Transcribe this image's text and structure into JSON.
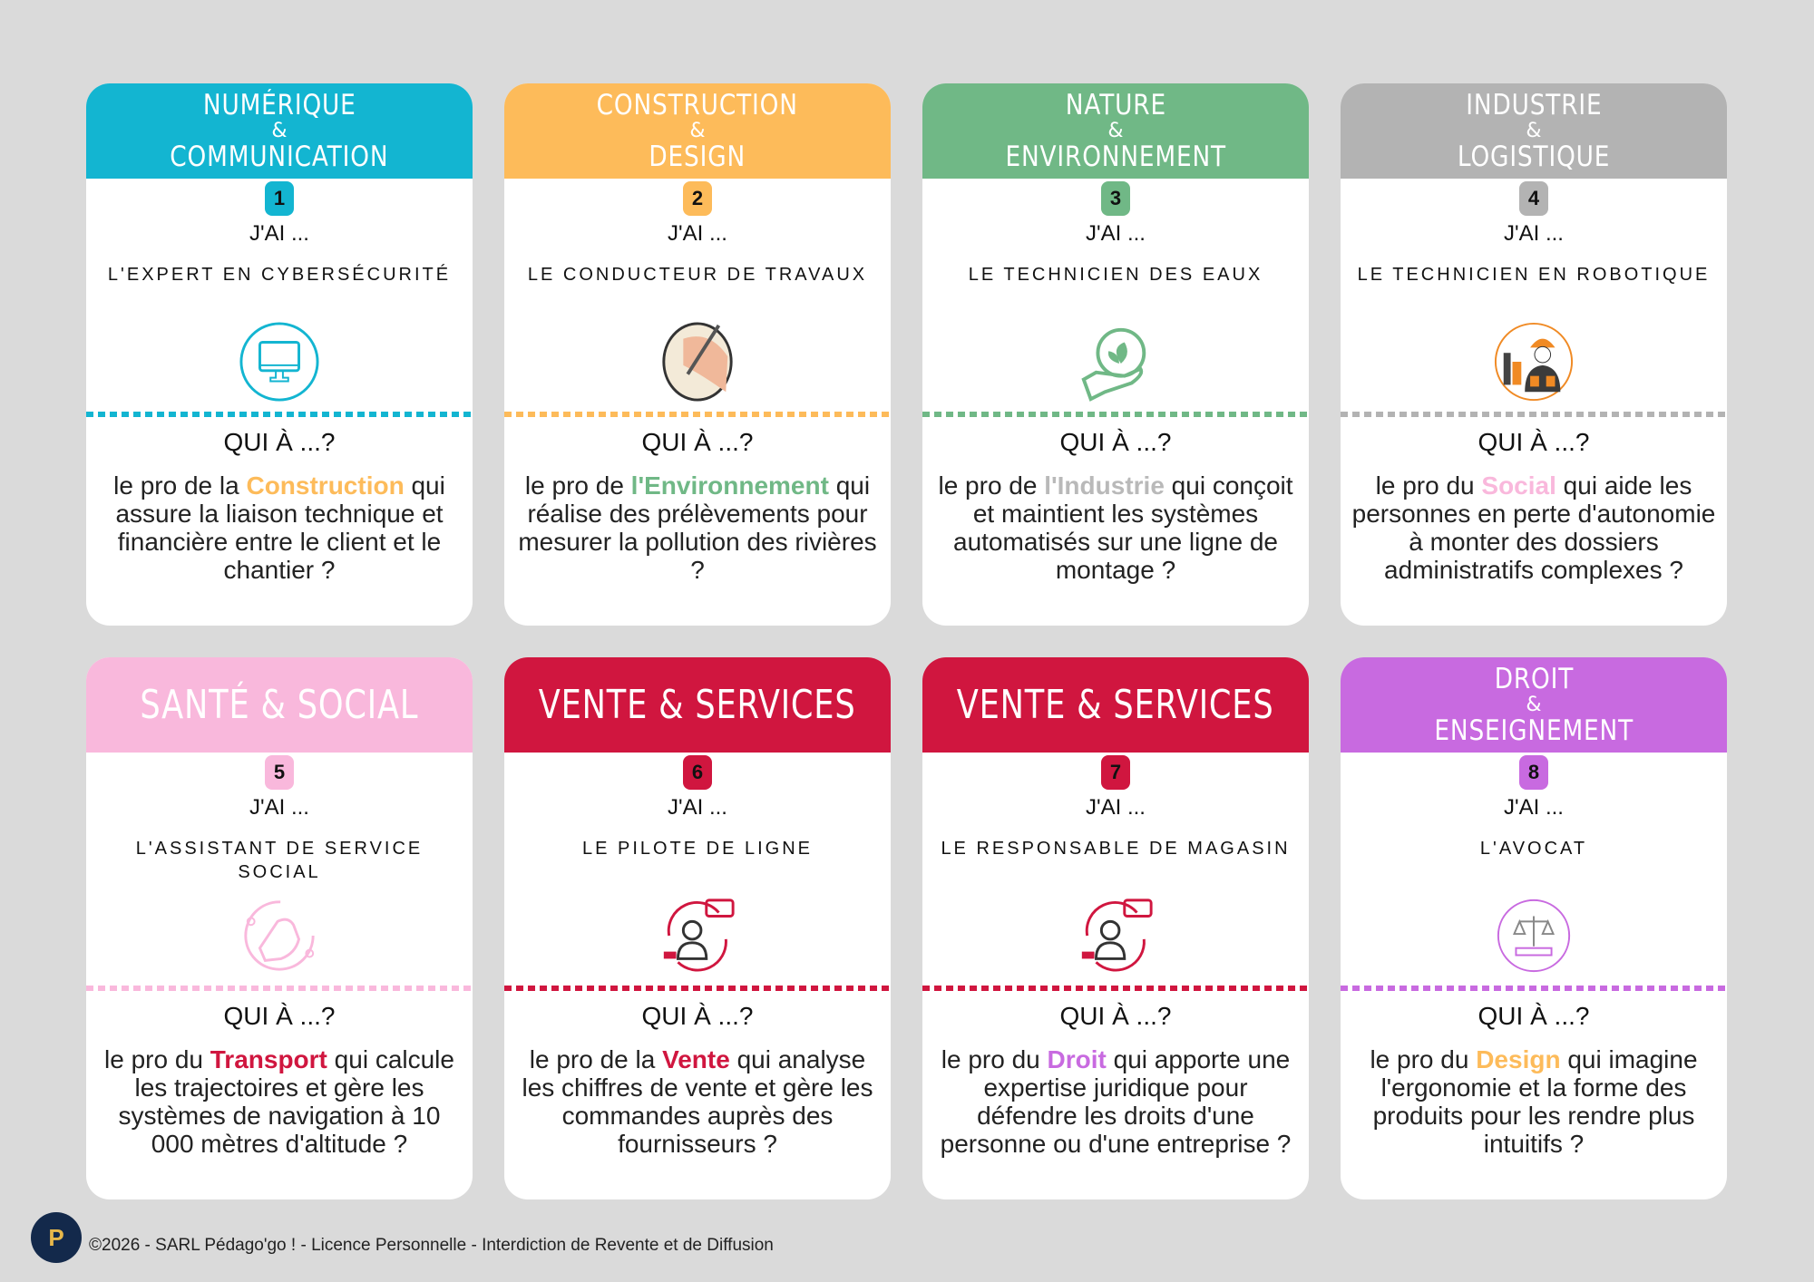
{
  "cards": [
    {
      "number": "1",
      "color": "#13b5d1",
      "title_lines": [
        "NUMÉRIQUE",
        "&",
        "COMMUNICATION"
      ],
      "jai": "J'AI ...",
      "job": "L'expert en cybersécurité",
      "icon": "computer-icon",
      "qui": "QUI À ...?",
      "desc_pre": "le pro de la ",
      "desc_hl": "Construction",
      "hl_color": "#fdbb5a",
      "desc_post": " qui assure la liaison technique et financière entre le client et le chantier ?"
    },
    {
      "number": "2",
      "color": "#fdbb5a",
      "title_lines": [
        "CONSTRUCTION",
        "&",
        "DESIGN"
      ],
      "jai": "J'AI ...",
      "job": "Le conducteur de travaux",
      "icon": "drawing-hand-icon",
      "qui": "QUI À ...?",
      "desc_pre": "le pro de ",
      "desc_hl": "l'Environnement",
      "hl_color": "#70b886",
      "desc_post": " qui réalise des prélèvements pour mesurer la pollution des rivières ?"
    },
    {
      "number": "3",
      "color": "#70b886",
      "title_lines": [
        "NATURE",
        "&",
        "ENVIRONNEMENT"
      ],
      "jai": "J'AI ...",
      "job": "Le technicien des eaux",
      "icon": "leaf-hand-icon",
      "qui": "QUI À ...?",
      "desc_pre": "le pro de ",
      "desc_hl": "l'Industrie",
      "hl_color": "#b9b9b9",
      "desc_post": " qui conçoit et maintient les systèmes automatisés sur une ligne de montage ?"
    },
    {
      "number": "4",
      "color": "#b3b3b3",
      "title_lines": [
        "INDUSTRIE",
        "&",
        "LOGISTIQUE"
      ],
      "jai": "J'AI ...",
      "job": "Le technicien en robotique",
      "icon": "industrial-worker-icon",
      "qui": "QUI À ...?",
      "desc_pre": "le pro du ",
      "desc_hl": "Social",
      "hl_color": "#f9b8dc",
      "desc_post": " qui aide les personnes en perte d'autonomie à monter des dossiers administratifs complexes ?"
    },
    {
      "number": "5",
      "color": "#f9b8dc",
      "title_lines": [
        "SANTÉ & SOCIAL"
      ],
      "jai": "J'AI ...",
      "job": "L'assistant de service social",
      "icon": "helping-hand-icon",
      "qui": "QUI À ...?",
      "desc_pre": "le pro du ",
      "desc_hl": "Transport",
      "hl_color": "#d0163f",
      "desc_post": " qui calcule les trajectoires et gère les systèmes de navigation à 10 000 mètres d'altitude ?"
    },
    {
      "number": "6",
      "color": "#d0163f",
      "title_lines": [
        "VENTE & SERVICES"
      ],
      "jai": "J'AI ...",
      "job": "Le pilote de ligne",
      "icon": "customer-service-icon",
      "qui": "QUI À ...?",
      "desc_pre": "le pro de la ",
      "desc_hl": "Vente",
      "hl_color": "#d0163f",
      "desc_post": " qui analyse les chiffres de vente et gère les commandes auprès des fournisseurs ?"
    },
    {
      "number": "7",
      "color": "#d0163f",
      "title_lines": [
        "VENTE & SERVICES"
      ],
      "jai": "J'AI ...",
      "job": "Le responsable de magasin",
      "icon": "customer-service-icon",
      "qui": "QUI À ...?",
      "desc_pre": "le pro du ",
      "desc_hl": "Droit",
      "hl_color": "#c86ae0",
      "desc_post": " qui apporte une expertise juridique pour défendre les droits d'une personne ou d'une entreprise ?"
    },
    {
      "number": "8",
      "color": "#c86ae0",
      "title_lines": [
        "DROIT",
        "&",
        "ENSEIGNEMENT"
      ],
      "jai": "J'AI ...",
      "job": "L'avocat",
      "icon": "scales-of-justice-icon",
      "qui": "QUI À ...?",
      "desc_pre": "le pro du ",
      "desc_hl": "Design",
      "hl_color": "#fdbb5a",
      "desc_post": " qui imagine l'ergonomie et la forme des produits pour les rendre plus intuitifs ?"
    }
  ],
  "footer": {
    "text": "©2026 - SARL Pédago'go ! - Licence Personnelle - Interdiction de Revente et de Diffusion",
    "logo_text": "Pédago'go !"
  }
}
